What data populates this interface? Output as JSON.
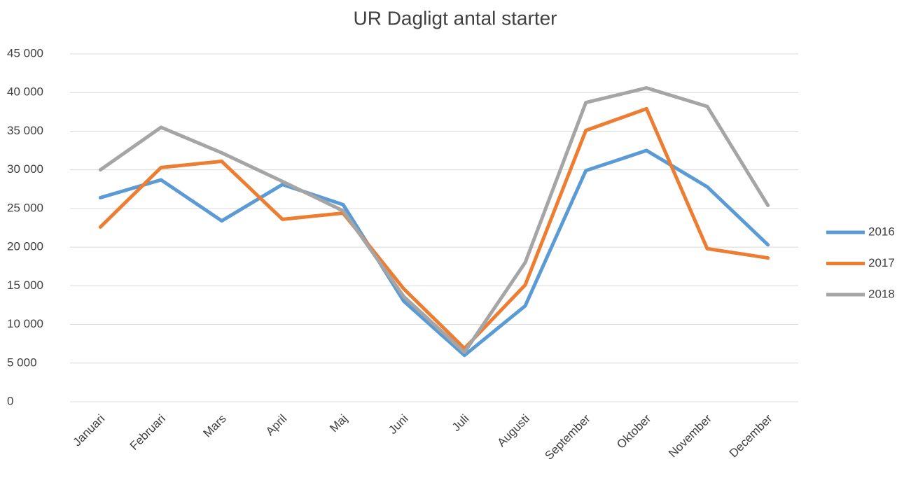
{
  "chart_data": {
    "type": "line",
    "title": "UR Dagligt antal starter",
    "categories": [
      "Januari",
      "Februari",
      "Mars",
      "April",
      "Maj",
      "Juni",
      "Juli",
      "Augusti",
      "September",
      "Oktober",
      "November",
      "December"
    ],
    "series": [
      {
        "name": "2016",
        "color": "#5b9bd5",
        "values": [
          26400,
          28700,
          23400,
          28100,
          25500,
          13000,
          6000,
          12400,
          29900,
          32500,
          27800,
          20300
        ]
      },
      {
        "name": "2017",
        "color": "#ed7d31",
        "values": [
          22600,
          30300,
          31100,
          23600,
          24400,
          14600,
          6900,
          15100,
          35100,
          37900,
          19800,
          18600
        ]
      },
      {
        "name": "2018",
        "color": "#a5a5a5",
        "values": [
          30000,
          35500,
          32200,
          28500,
          24700,
          13600,
          6400,
          18000,
          38700,
          40600,
          38200,
          25400
        ]
      }
    ],
    "ylim": [
      0,
      45000
    ],
    "yticks": [
      0,
      {
        "value": 5000,
        "label": "5 000"
      },
      {
        "value": 10000,
        "label": "10 000"
      },
      {
        "value": 15000,
        "label": "15 000"
      },
      {
        "value": 20000,
        "label": "20 000"
      },
      {
        "value": 25000,
        "label": "25 000"
      },
      {
        "value": 30000,
        "label": "30 000"
      },
      {
        "value": 35000,
        "label": "35 000"
      },
      {
        "value": 40000,
        "label": "40 000"
      },
      {
        "value": 45000,
        "label": "45 000"
      }
    ],
    "grid": true,
    "legend": "right"
  }
}
